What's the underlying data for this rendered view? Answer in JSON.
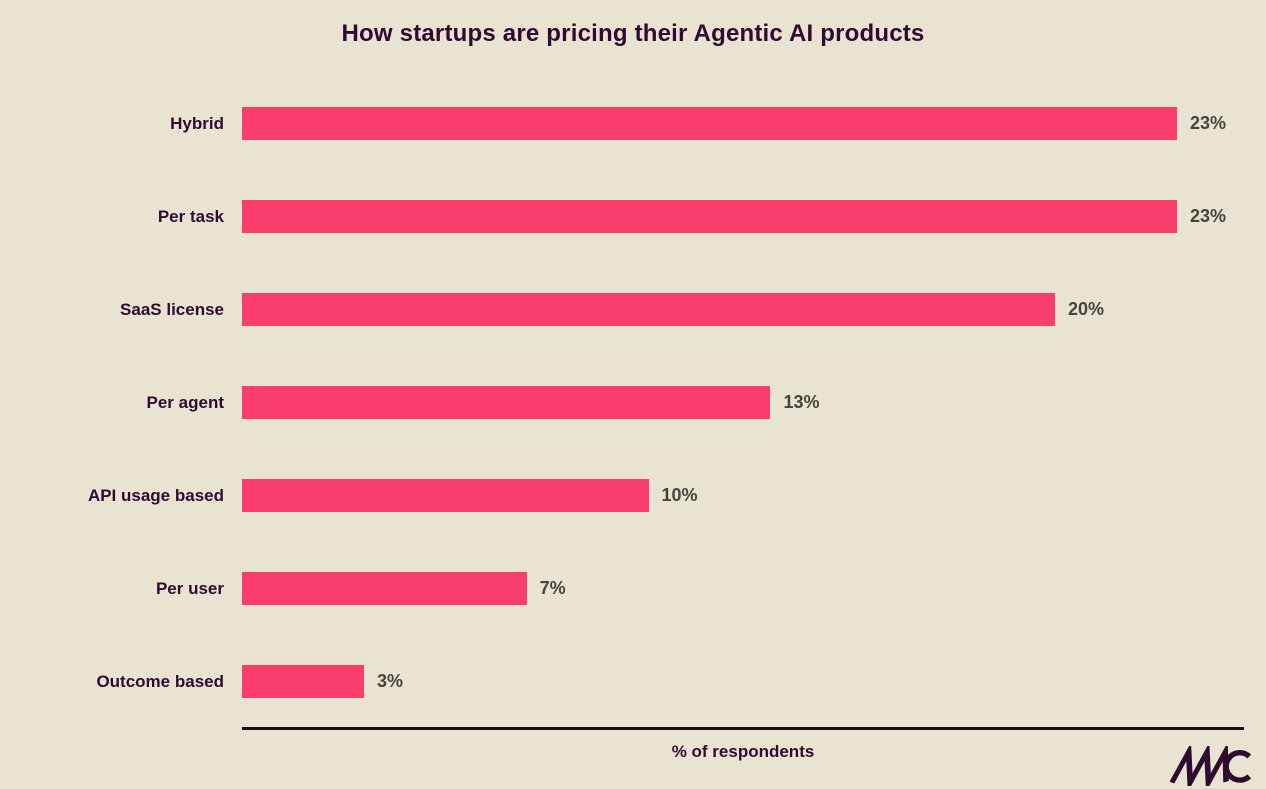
{
  "title": "How startups are pricing their Agentic AI products",
  "logo": {
    "text": "MMC"
  },
  "colors": {
    "background": "#E9E4D2",
    "bar": "#F93E6E",
    "text_primary": "#300A30",
    "value_label": "#45453E",
    "axis_line": "#1E0820"
  },
  "chart_data": {
    "type": "bar",
    "orientation": "horizontal",
    "title": "How startups are pricing their Agentic AI products",
    "categories": [
      "Hybrid",
      "Per task",
      "SaaS license",
      "Per agent",
      "API usage based",
      "Per user",
      "Outcome based"
    ],
    "values": [
      23,
      23,
      20,
      13,
      10,
      7,
      3
    ],
    "value_labels": [
      "23%",
      "23%",
      "20%",
      "13%",
      "10%",
      "7%",
      "3%"
    ],
    "xlabel": "% of respondents",
    "ylabel": "",
    "xlim": [
      0,
      24.6
    ],
    "grid": false,
    "legend": "none",
    "bar_color": "#F93E6E"
  }
}
